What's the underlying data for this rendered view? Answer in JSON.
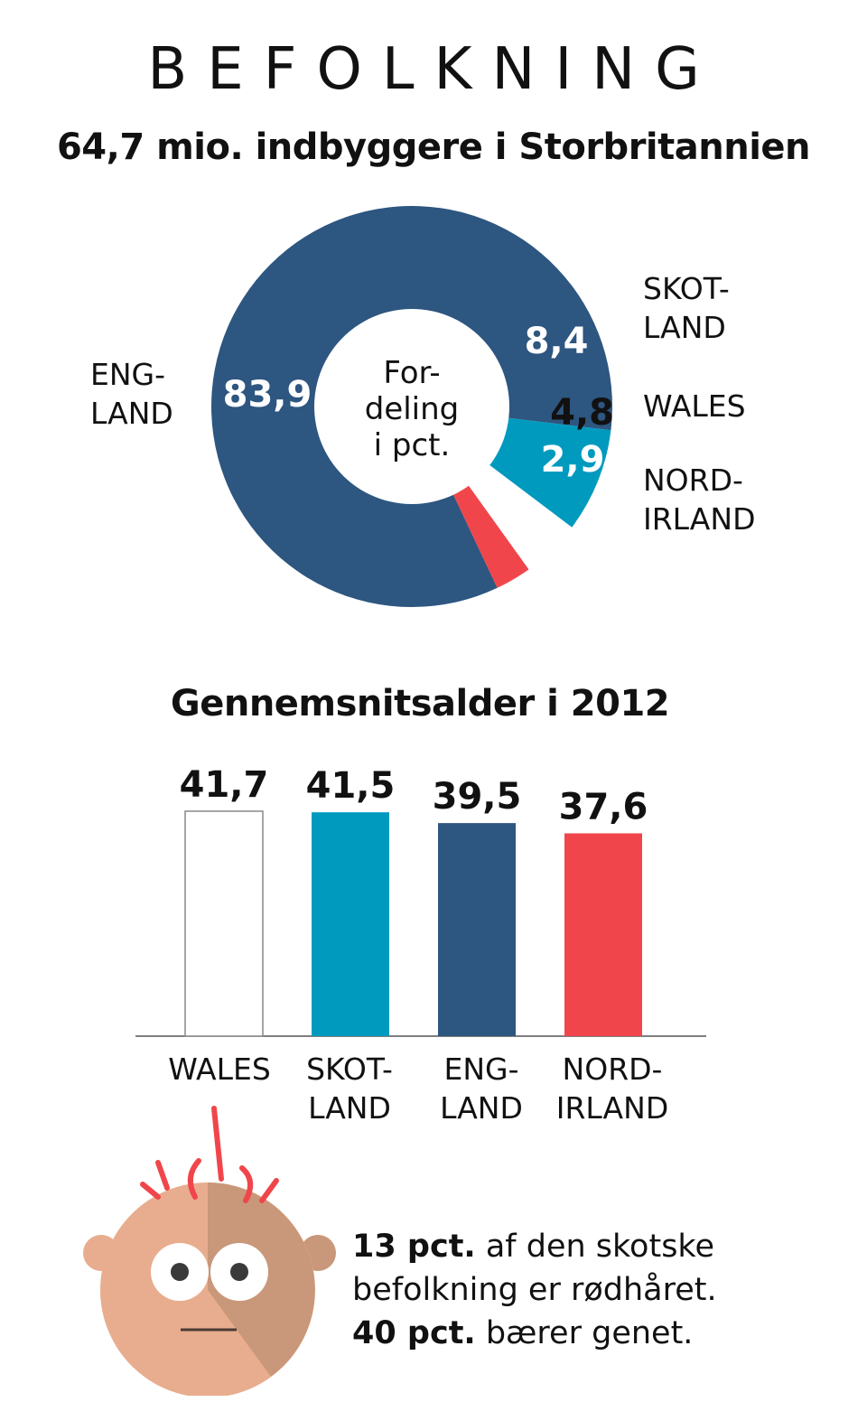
{
  "header": {
    "title": "BEFOLKNING",
    "subtitle": "64,7 mio. indbyggere i Storbritannien"
  },
  "donut": {
    "center_label": [
      "For-",
      "deling",
      "i pct."
    ],
    "region_labels": {
      "england": [
        "ENG-",
        "LAND"
      ],
      "scotland": [
        "SKOT-",
        "LAND"
      ],
      "wales": [
        "WALES"
      ],
      "northern_ireland": [
        "NORD-",
        "IRLAND"
      ]
    }
  },
  "bars": {
    "title": "Gennemsnitsalder i 2012",
    "category_labels": [
      [
        "WALES"
      ],
      [
        "SKOT-",
        "LAND"
      ],
      [
        "ENG-",
        "LAND"
      ],
      [
        "NORD-",
        "IRLAND"
      ]
    ]
  },
  "fact": {
    "line1_bold": "13 pct.",
    "line1_rest": " af den skotske",
    "line2": "befolkning er rødhåret.",
    "line3_bold": "40 pct.",
    "line3_rest": " bærer genet."
  },
  "colors": {
    "england": "#2d5680",
    "scotland": "#009abf",
    "wales": "#ffffff",
    "northern_ireland": "#f0464b",
    "text": "#111111"
  },
  "chart_data": [
    {
      "type": "pie",
      "title": "64,7 mio. indbyggere i Storbritannien",
      "categories": [
        "ENGLAND",
        "SKOTLAND",
        "WALES",
        "NORDIRLAND"
      ],
      "values": [
        83.9,
        8.4,
        4.8,
        2.9
      ],
      "value_labels": [
        "83,9",
        "8,4",
        "4,8",
        "2,9"
      ],
      "unit": "pct."
    },
    {
      "type": "bar",
      "title": "Gennemsnitsalder i 2012",
      "categories": [
        "WALES",
        "SKOTLAND",
        "ENGLAND",
        "NORDIRLAND"
      ],
      "values": [
        41.7,
        41.5,
        39.5,
        37.6
      ],
      "value_labels": [
        "41,7",
        "41,5",
        "39,5",
        "37,6"
      ]
    }
  ]
}
